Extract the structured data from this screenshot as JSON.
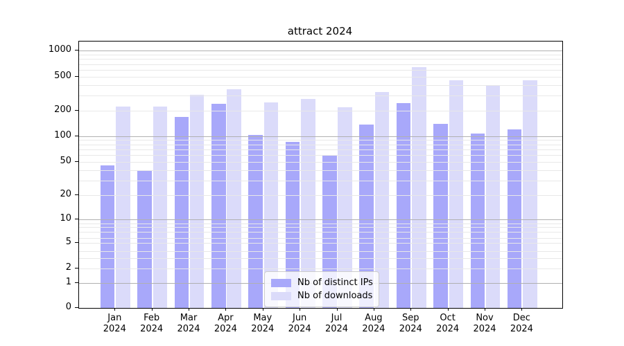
{
  "chart_data": {
    "type": "bar",
    "title": "attract 2024",
    "categories": [
      "Jan 2024",
      "Feb 2024",
      "Mar 2024",
      "Apr 2024",
      "May 2024",
      "Jun 2024",
      "Jul 2024",
      "Aug 2024",
      "Sep 2024",
      "Oct 2024",
      "Nov 2024",
      "Dec 2024"
    ],
    "series": [
      {
        "name": "Nb of distinct IPs",
        "color": "#a8a8fa",
        "values": [
          45,
          40,
          170,
          240,
          104,
          85,
          60,
          138,
          245,
          140,
          107,
          120
        ]
      },
      {
        "name": "Nb of downloads",
        "color": "#dbdbfa",
        "values": [
          225,
          225,
          310,
          360,
          250,
          275,
          220,
          335,
          650,
          460,
          395,
          455
        ]
      }
    ],
    "xlabel": "",
    "ylabel": "",
    "yscale": "symlog",
    "ylim": [
      0,
      1320
    ],
    "ytick_labels": [
      "0",
      "1",
      "2",
      "5",
      "10",
      "20",
      "50",
      "100",
      "200",
      "500",
      "1000"
    ],
    "yticks": [
      0,
      1,
      2,
      5,
      10,
      20,
      50,
      100,
      200,
      500,
      1000
    ],
    "grid": {
      "enabled": true,
      "major_values": [
        1,
        10,
        100,
        1000
      ],
      "minor_values": [
        2,
        3,
        4,
        5,
        6,
        7,
        8,
        9,
        20,
        30,
        40,
        50,
        60,
        70,
        80,
        90,
        200,
        300,
        400,
        500,
        600,
        700,
        800,
        900
      ],
      "major_color": "#b0b0b0",
      "minor_color": "#e8e8e8"
    },
    "legend": {
      "position": "lower center",
      "entries": [
        "Nb of distinct IPs",
        "Nb of downloads"
      ]
    },
    "scale_anchors": [
      [
        0,
        1.0
      ],
      [
        1,
        0.9065
      ],
      [
        2,
        0.8512
      ],
      [
        3,
        0.8138
      ],
      [
        4,
        0.7862
      ],
      [
        5,
        0.7558
      ],
      [
        6,
        0.7369
      ],
      [
        7,
        0.7151
      ],
      [
        8,
        0.6969
      ],
      [
        9,
        0.6823
      ],
      [
        10,
        0.6667
      ],
      [
        20,
        0.5774
      ],
      [
        50,
        0.4512
      ],
      [
        100,
        0.3551
      ],
      [
        200,
        0.2597
      ],
      [
        500,
        0.1335
      ],
      [
        1000,
        0.033
      ]
    ]
  }
}
